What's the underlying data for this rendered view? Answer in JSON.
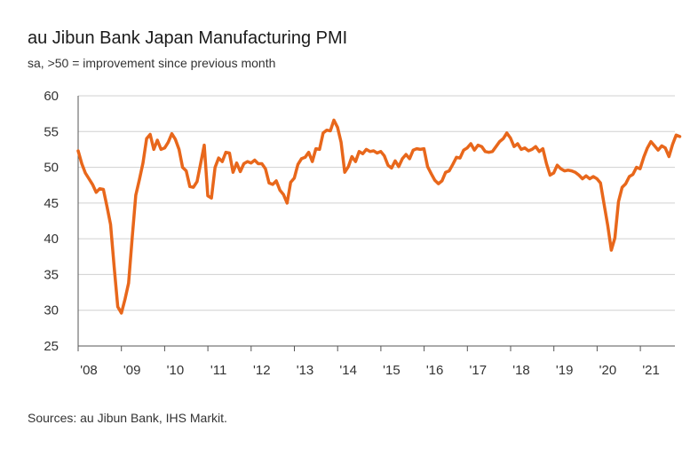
{
  "chart_data": {
    "type": "line",
    "title": "au Jibun Bank Japan Manufacturing PMI",
    "subtitle": "sa, >50 = improvement since previous month",
    "source": "Sources: au Jibun Bank, IHS Markit.",
    "xlabel": "",
    "ylabel": "",
    "ylim": [
      25,
      60
    ],
    "yticks": [
      25,
      30,
      35,
      40,
      45,
      50,
      55,
      60
    ],
    "xlim": [
      2008.0,
      2021.92
    ],
    "xticks": [
      {
        "value": 2008,
        "label": "'08"
      },
      {
        "value": 2009,
        "label": "'09"
      },
      {
        "value": 2010,
        "label": "'10"
      },
      {
        "value": 2011,
        "label": "'11"
      },
      {
        "value": 2012,
        "label": "'12"
      },
      {
        "value": 2013,
        "label": "'13"
      },
      {
        "value": 2014,
        "label": "'14"
      },
      {
        "value": 2015,
        "label": "'15"
      },
      {
        "value": 2016,
        "label": "'16"
      },
      {
        "value": 2017,
        "label": "'17"
      },
      {
        "value": 2018,
        "label": "'18"
      },
      {
        "value": 2019,
        "label": "'19"
      },
      {
        "value": 2020,
        "label": "'20"
      },
      {
        "value": 2021,
        "label": "'21"
      }
    ],
    "grid": true,
    "color": "#e8671b",
    "series": [
      {
        "name": "Japan Manufacturing PMI",
        "start": 2008.0,
        "step": 0.0833,
        "values": [
          52.3,
          50.5,
          49.2,
          48.4,
          47.6,
          46.5,
          47.0,
          46.9,
          44.5,
          42.0,
          36.0,
          30.5,
          29.6,
          31.5,
          33.8,
          40.2,
          46.1,
          48.3,
          50.6,
          54.0,
          54.6,
          52.5,
          53.8,
          52.5,
          52.7,
          53.5,
          54.7,
          53.9,
          52.5,
          50.0,
          49.5,
          47.3,
          47.2,
          48.0,
          50.5,
          53.1,
          46.0,
          45.7,
          50.0,
          51.3,
          50.8,
          52.1,
          52.0,
          49.3,
          50.6,
          49.4,
          50.5,
          50.8,
          50.6,
          51.0,
          50.5,
          50.5,
          49.8,
          47.8,
          47.6,
          48.1,
          46.8,
          46.2,
          45.0,
          47.9,
          48.5,
          50.4,
          51.2,
          51.4,
          52.1,
          50.8,
          52.6,
          52.5,
          54.8,
          55.2,
          55.1,
          56.6,
          55.6,
          53.5,
          49.3,
          50.1,
          51.5,
          50.8,
          52.2,
          51.9,
          52.5,
          52.2,
          52.3,
          52.0,
          52.2,
          51.6,
          50.3,
          49.9,
          50.9,
          50.1,
          51.2,
          51.8,
          51.2,
          52.4,
          52.6,
          52.5,
          52.6,
          50.1,
          49.1,
          48.2,
          47.7,
          48.1,
          49.3,
          49.5,
          50.4,
          51.4,
          51.3,
          52.4,
          52.7,
          53.3,
          52.4,
          53.1,
          52.9,
          52.2,
          52.1,
          52.2,
          52.9,
          53.6,
          54.0,
          54.8,
          54.1,
          52.9,
          53.3,
          52.5,
          52.7,
          52.3,
          52.5,
          52.9,
          52.2,
          52.6,
          50.5,
          48.9,
          49.2,
          50.3,
          49.8,
          49.5,
          49.6,
          49.5,
          49.3,
          48.9,
          48.4,
          48.8,
          48.4,
          48.7,
          48.4,
          47.8,
          44.8,
          41.9,
          38.4,
          40.1,
          45.2,
          47.2,
          47.7,
          48.7,
          49.0,
          50.0,
          49.8,
          51.4,
          52.7,
          53.6,
          53.0,
          52.4,
          53.0,
          52.7,
          51.5,
          53.2,
          54.5,
          54.3
        ]
      }
    ]
  }
}
